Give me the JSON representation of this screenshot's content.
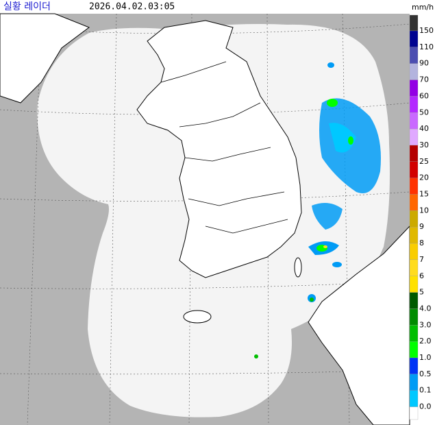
{
  "header": {
    "title": "실황 레이더",
    "timestamp": "2026.04.02.03:05",
    "unit": "mm/h"
  },
  "legend": {
    "labels": [
      "150",
      "110",
      "90",
      "70",
      "60",
      "50",
      "40",
      "30",
      "25",
      "20",
      "15",
      "10",
      "9",
      "8",
      "7",
      "6",
      "5",
      "4.0",
      "3.0",
      "2.0",
      "1.0",
      "0.5",
      "0.1",
      "0.0"
    ],
    "colors": [
      "#333333",
      "#000390",
      "#4c4eb1",
      "#b3b4de",
      "#9300e4",
      "#b329ff",
      "#c969ff",
      "#e0a9ff",
      "#b40000",
      "#d20000",
      "#ff3200",
      "#ff6600",
      "#ccaa00",
      "#e0b900",
      "#f9cd00",
      "#ffdc1f",
      "#ffe100",
      "#005a00",
      "#008c00",
      "#00be00",
      "#00ff00",
      "#0033f5",
      "#009bf5",
      "#00c8ff",
      "#ffffff"
    ]
  }
}
